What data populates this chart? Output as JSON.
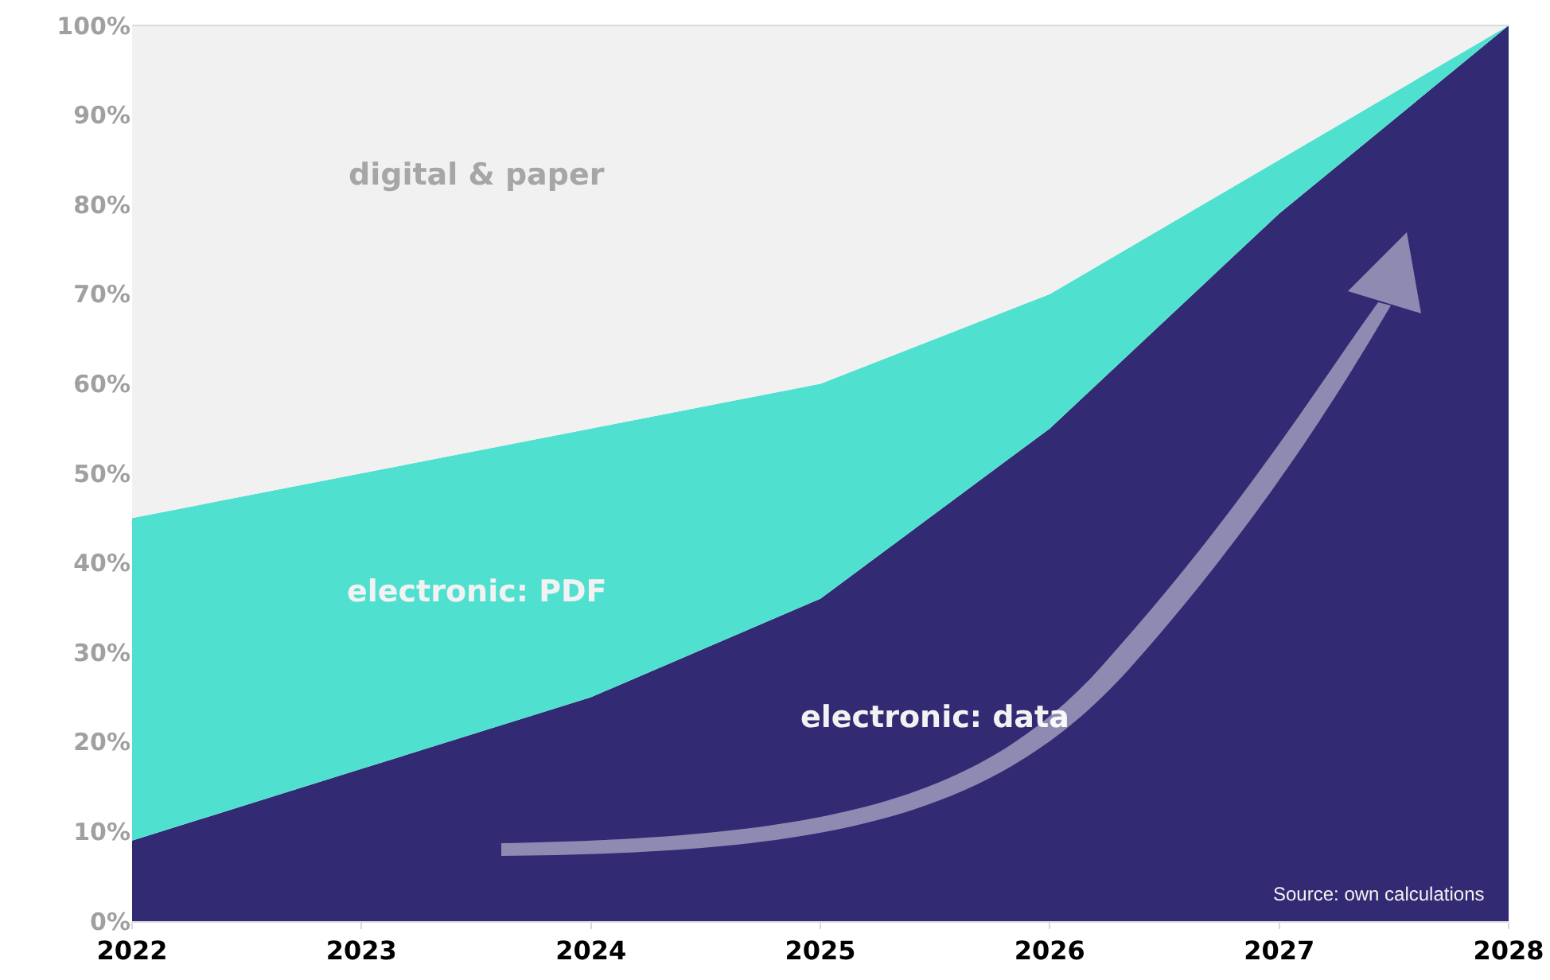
{
  "chart_data": {
    "type": "area",
    "stacked": true,
    "x": [
      2022,
      2023,
      2024,
      2025,
      2026,
      2027,
      2028
    ],
    "series": [
      {
        "name": "electronic: data",
        "color": "#322a73",
        "values": [
          9,
          17,
          25,
          36,
          55,
          79,
          100
        ]
      },
      {
        "name": "electronic: PDF",
        "color": "#50e0d0",
        "values": [
          36,
          33,
          30,
          24,
          15,
          6,
          0
        ]
      },
      {
        "name": "digital & paper",
        "color": "#f1f1f1",
        "values": [
          55,
          50,
          45,
          40,
          30,
          15,
          0
        ]
      }
    ],
    "xlim": [
      2022,
      2028
    ],
    "xticks": [
      2022,
      2023,
      2024,
      2025,
      2026,
      2027,
      2028
    ],
    "ylim": [
      0,
      100
    ],
    "yticks": [
      {
        "value": 0,
        "label": "0%"
      },
      {
        "value": 10,
        "label": "10%"
      },
      {
        "value": 20,
        "label": "20%"
      },
      {
        "value": 30,
        "label": "30%"
      },
      {
        "value": 40,
        "label": "40%"
      },
      {
        "value": 50,
        "label": "50%"
      },
      {
        "value": 60,
        "label": "60%"
      },
      {
        "value": 70,
        "label": "70%"
      },
      {
        "value": 80,
        "label": "80%"
      },
      {
        "value": 90,
        "label": "90%"
      },
      {
        "value": 100,
        "label": "100%"
      }
    ],
    "legend": false,
    "annotations": [
      "Source: own calculations"
    ]
  }
}
